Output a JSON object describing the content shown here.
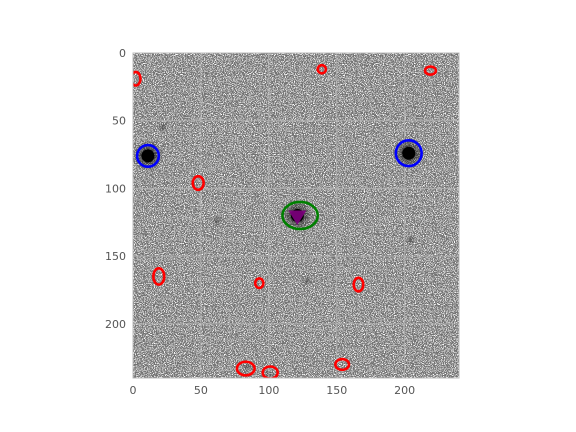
{
  "chart_data": {
    "type": "scatter",
    "title": "",
    "xlabel": "",
    "ylabel": "",
    "xlim": [
      0,
      240
    ],
    "ylim": [
      240,
      0
    ],
    "x_ticks": [
      0,
      50,
      100,
      150,
      200
    ],
    "y_ticks": [
      0,
      50,
      100,
      150,
      200
    ],
    "grid": true,
    "background": "image",
    "bright_sources": [
      {
        "x": 11,
        "y": 76
      },
      {
        "x": 203,
        "y": 74
      },
      {
        "x": 121,
        "y": 120
      }
    ],
    "faint_blobs": [
      {
        "x": 22,
        "y": 55
      },
      {
        "x": 62,
        "y": 124
      },
      {
        "x": 128,
        "y": 168
      },
      {
        "x": 204,
        "y": 138
      },
      {
        "x": 84,
        "y": 232
      },
      {
        "x": 100,
        "y": 237
      }
    ],
    "series": [
      {
        "marker": "ellipse",
        "color": "#ff0000",
        "points": [
          {
            "x": 2,
            "y": 19,
            "rx": 3.5,
            "ry": 5
          },
          {
            "x": 139,
            "y": 12,
            "rx": 3,
            "ry": 3
          },
          {
            "x": 219,
            "y": 13,
            "rx": 4,
            "ry": 3
          },
          {
            "x": 48,
            "y": 96,
            "rx": 4,
            "ry": 5
          },
          {
            "x": 19,
            "y": 165,
            "rx": 4,
            "ry": 6
          },
          {
            "x": 93,
            "y": 170,
            "rx": 3,
            "ry": 3.5
          },
          {
            "x": 166,
            "y": 171,
            "rx": 3.5,
            "ry": 5
          },
          {
            "x": 83,
            "y": 233,
            "rx": 6.5,
            "ry": 5
          },
          {
            "x": 101,
            "y": 236,
            "rx": 5.5,
            "ry": 4.5
          },
          {
            "x": 154,
            "y": 230,
            "rx": 5,
            "ry": 4
          }
        ]
      },
      {
        "marker": "circle",
        "color": "#0000ff",
        "points": [
          {
            "x": 11,
            "y": 76,
            "rx": 8,
            "ry": 8
          },
          {
            "x": 203,
            "y": 74,
            "rx": 9.5,
            "ry": 9.5
          }
        ]
      },
      {
        "marker": "ellipse",
        "color": "#008000",
        "points": [
          {
            "x": 123,
            "y": 120,
            "rx": 13,
            "ry": 10
          }
        ]
      },
      {
        "marker": "triangle-down",
        "color": "#800080",
        "points": [
          {
            "x": 121,
            "y": 121
          }
        ]
      }
    ]
  }
}
